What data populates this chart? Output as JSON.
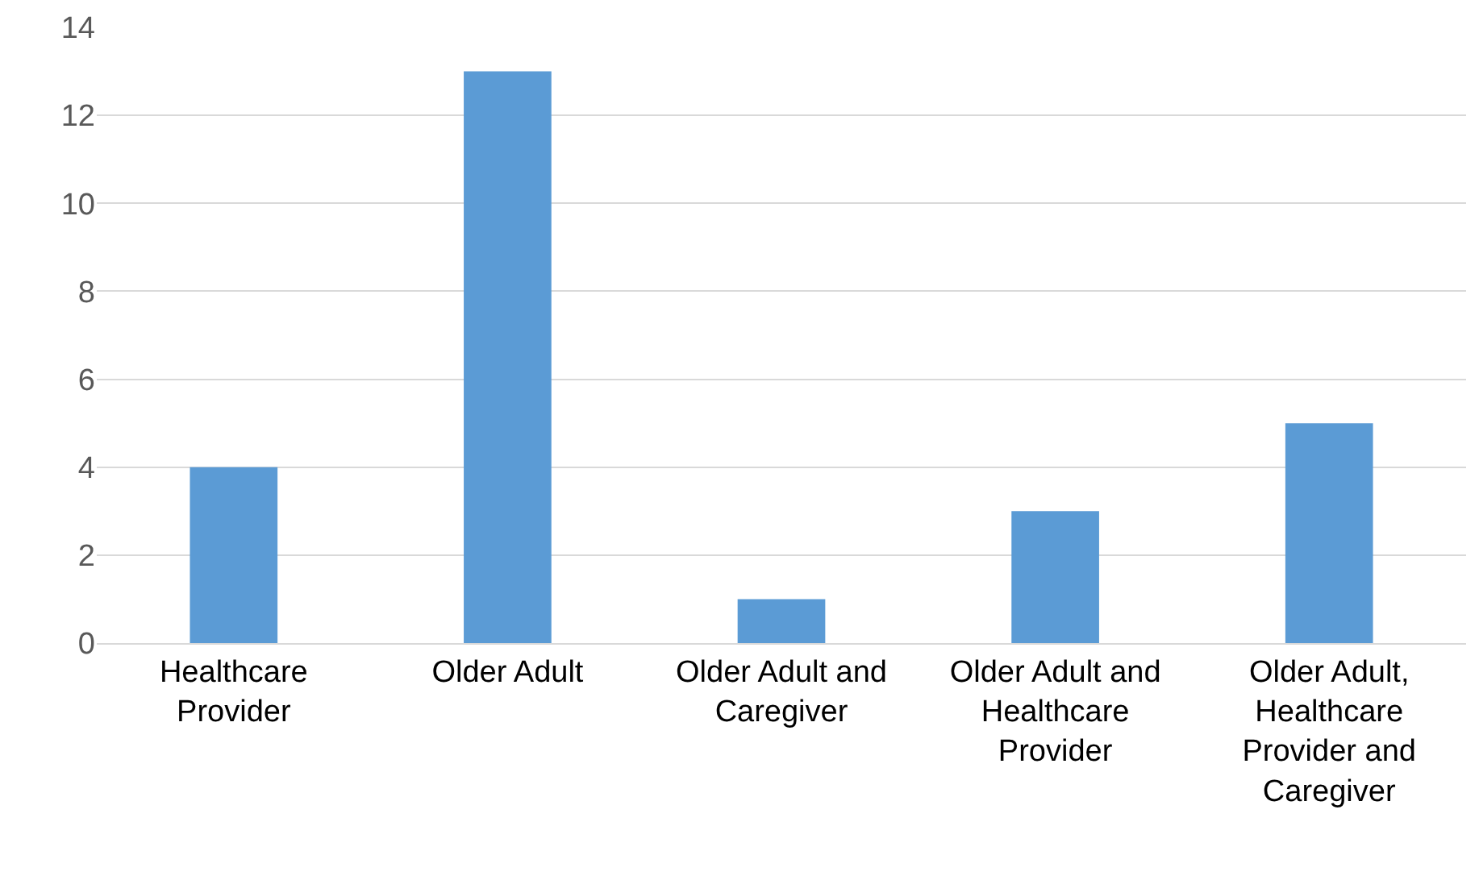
{
  "chart_data": {
    "type": "bar",
    "categories": [
      "Healthcare Provider",
      "Older Adult",
      "Older Adult and Caregiver",
      "Older Adult and Healthcare Provider",
      "Older Adult, Healthcare Provider and Caregiver"
    ],
    "values": [
      4,
      13,
      1,
      3,
      5
    ],
    "color": "#5b9bd5",
    "ylim": [
      0,
      14
    ],
    "yticks": [
      0,
      2,
      4,
      6,
      8,
      10,
      12,
      14
    ],
    "grid": "y"
  }
}
